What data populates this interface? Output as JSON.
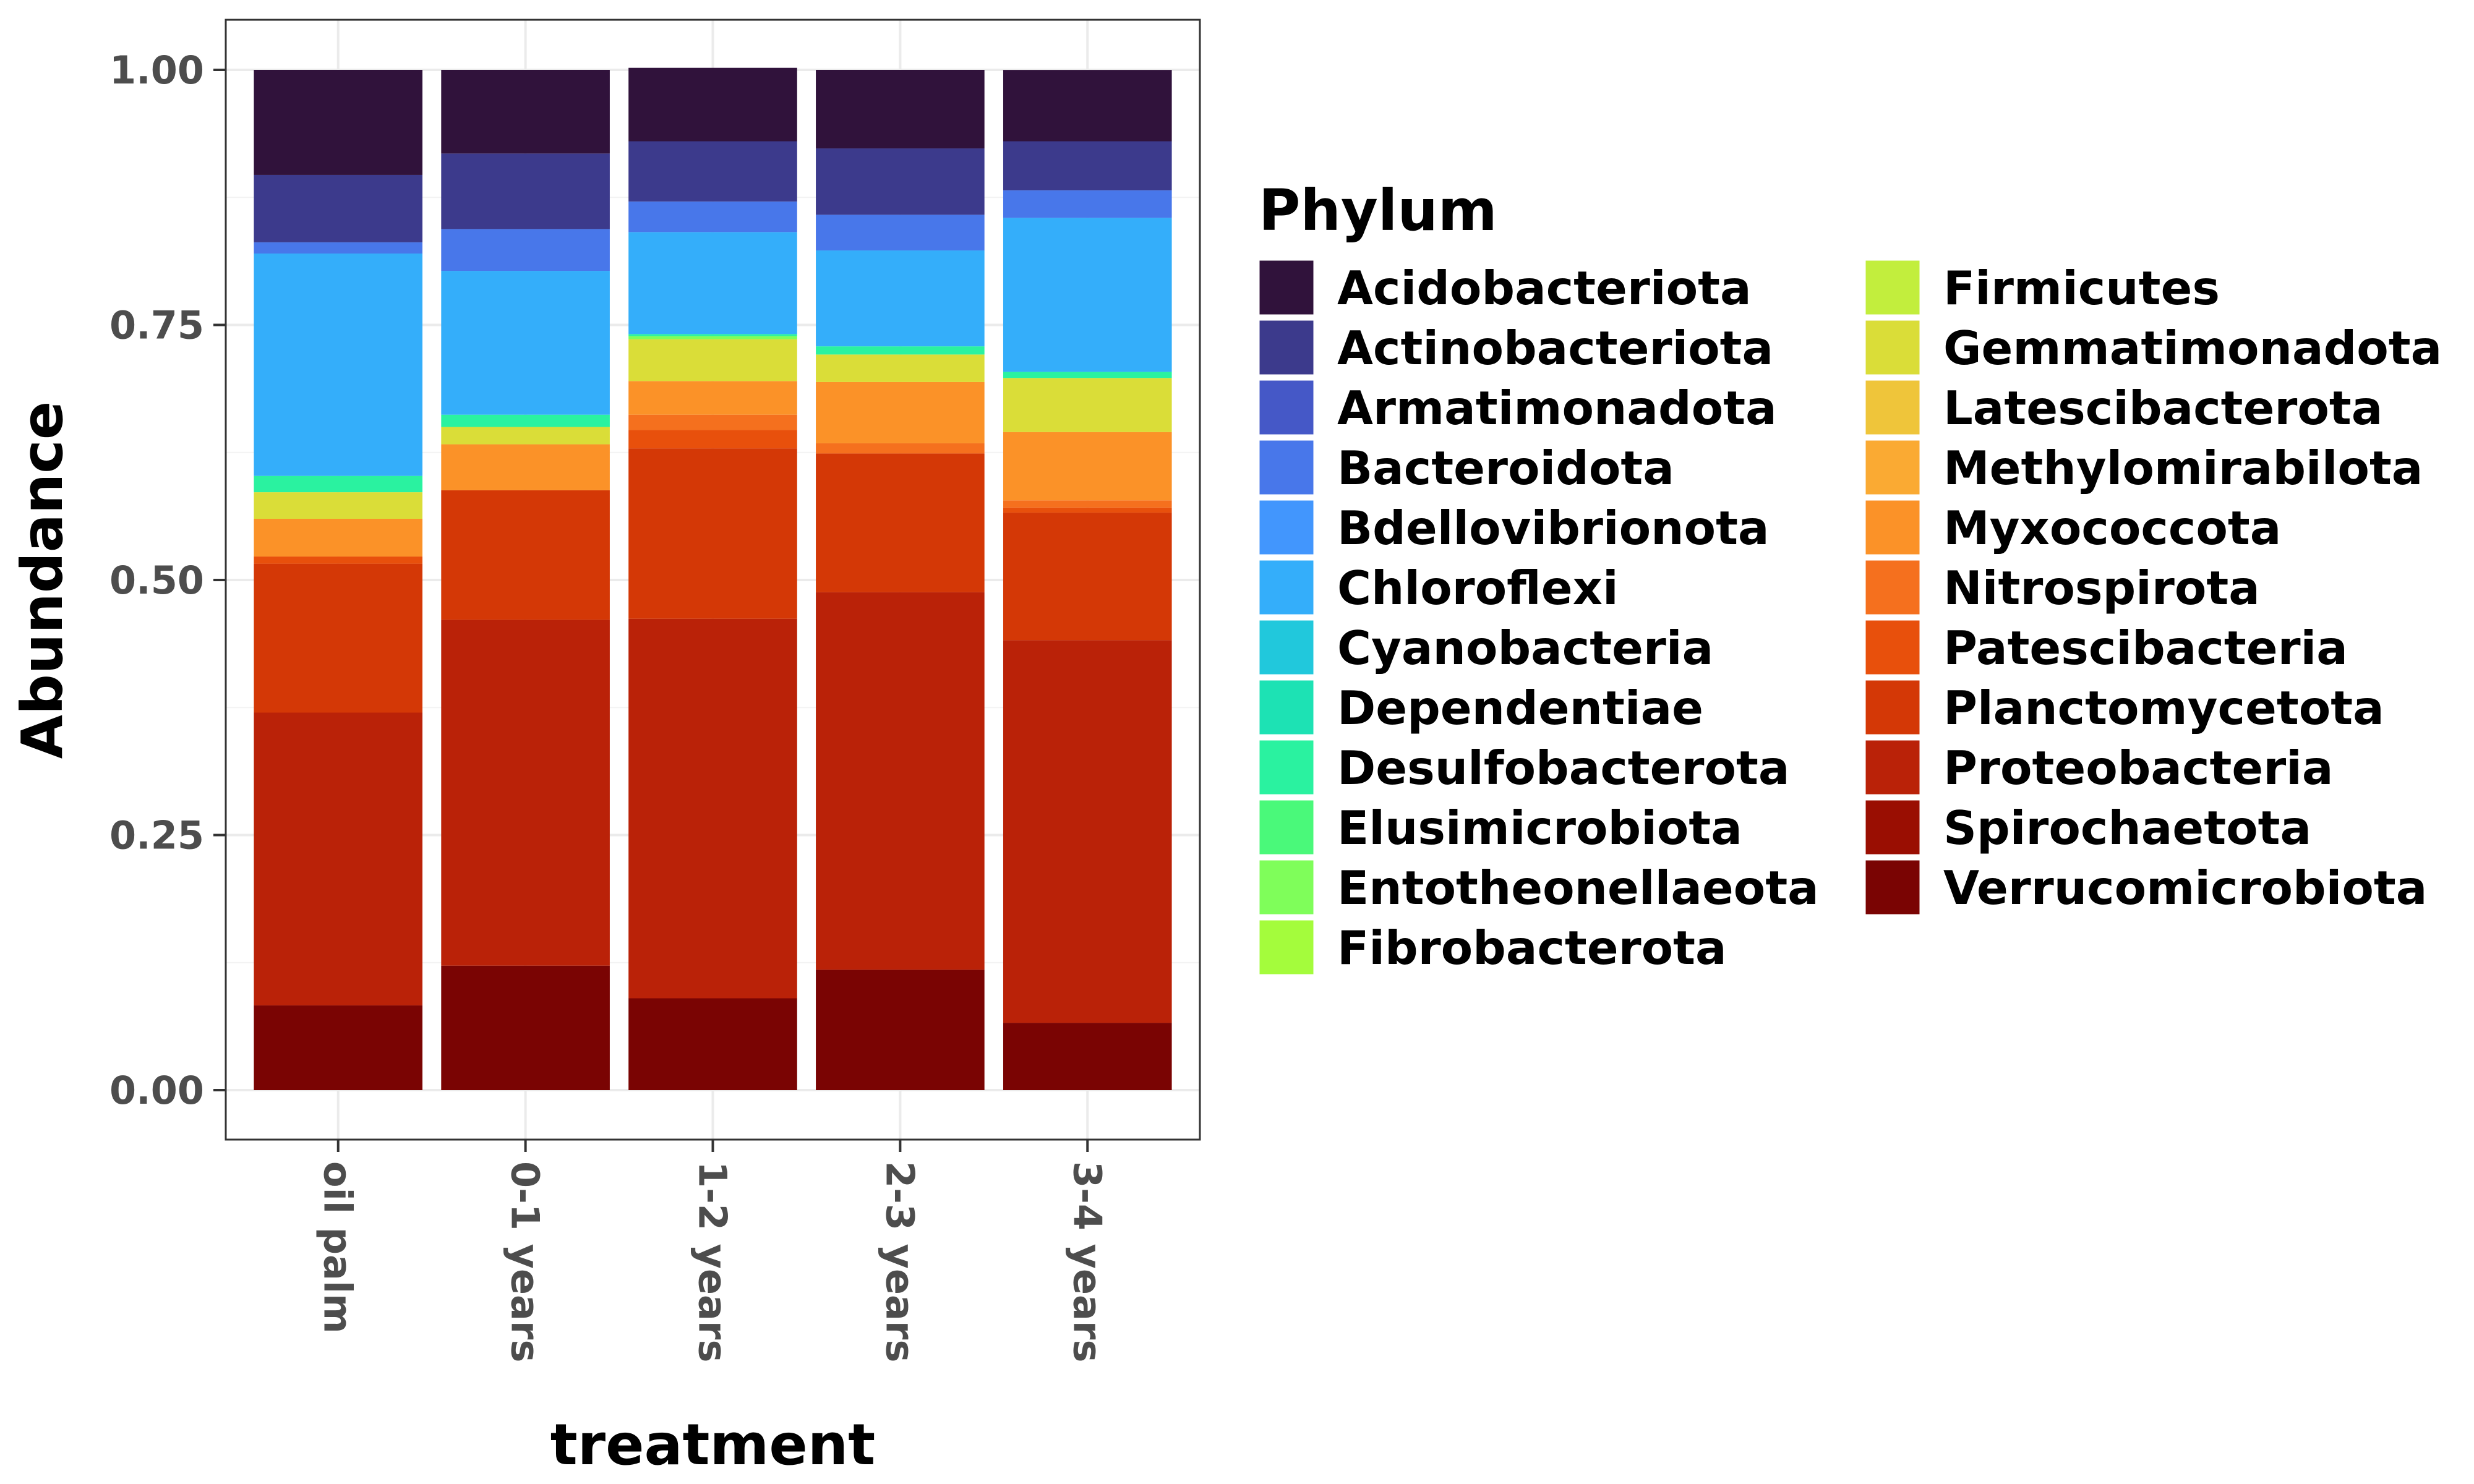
{
  "chart_data": {
    "type": "bar",
    "stacked": true,
    "xlabel": "treatment",
    "ylabel": "Abundance",
    "ylim": [
      0,
      1
    ],
    "yticks": [
      "0.00",
      "0.25",
      "0.50",
      "0.75",
      "1.00"
    ],
    "yticks_values": [
      0,
      0.25,
      0.5,
      0.75,
      1.0
    ],
    "grid": true,
    "legend": {
      "title": "Phylum",
      "placement": "right",
      "columns": 2
    },
    "categories": [
      "oil palm",
      "0-1 years",
      "1-2 years",
      "2-3 years",
      "3-4 years"
    ],
    "series": [
      {
        "name": "Verrucomicrobiota",
        "color": "#7a0403",
        "values": [
          0.083,
          0.122,
          0.09,
          0.118,
          0.066
        ]
      },
      {
        "name": "Spirochaetota",
        "color": "#9a0e02",
        "values": [
          0.0,
          0.0,
          0.0,
          0.0,
          0.0
        ]
      },
      {
        "name": "Proteobacteria",
        "color": "#ba2208",
        "values": [
          0.287,
          0.339,
          0.372,
          0.37,
          0.375
        ]
      },
      {
        "name": "Planctomycetota",
        "color": "#d43806",
        "values": [
          0.146,
          0.127,
          0.167,
          0.136,
          0.125
        ]
      },
      {
        "name": "Patescibacteria",
        "color": "#e8500c",
        "values": [
          0.007,
          0.0,
          0.018,
          0.0,
          0.005
        ]
      },
      {
        "name": "Nitrospirota",
        "color": "#f5701e",
        "values": [
          0.0,
          0.0,
          0.015,
          0.01,
          0.007
        ]
      },
      {
        "name": "Myxococcota",
        "color": "#fb9228",
        "values": [
          0.037,
          0.045,
          0.033,
          0.06,
          0.067
        ]
      },
      {
        "name": "Methylomirabilota",
        "color": "#faaa33",
        "values": [
          0.0,
          0.0,
          0.0,
          0.0,
          0.0
        ]
      },
      {
        "name": "Latescibacterota",
        "color": "#efc53a",
        "values": [
          0.0,
          0.0,
          0.0,
          0.0,
          0.0
        ]
      },
      {
        "name": "Gemmatimonadota",
        "color": "#dadd38",
        "values": [
          0.026,
          0.017,
          0.041,
          0.027,
          0.053
        ]
      },
      {
        "name": "Firmicutes",
        "color": "#c2ee3d",
        "values": [
          0.0,
          0.0,
          0.0,
          0.0,
          0.0
        ]
      },
      {
        "name": "Fibrobacterota",
        "color": "#a4fc3c",
        "values": [
          0.0,
          0.0,
          0.0,
          0.0,
          0.0
        ]
      },
      {
        "name": "Entotheonellaeota",
        "color": "#7ffe5a",
        "values": [
          0.0,
          0.0,
          0.003,
          0.0,
          0.0
        ]
      },
      {
        "name": "Elusimicrobiota",
        "color": "#4af97a",
        "values": [
          0.0,
          0.0,
          0.0,
          0.0,
          0.0
        ]
      },
      {
        "name": "Desulfobacterota",
        "color": "#2af2a0",
        "values": [
          0.016,
          0.012,
          0.002,
          0.008,
          0.006
        ]
      },
      {
        "name": "Dependentiae",
        "color": "#1de2b4",
        "values": [
          0.0,
          0.0,
          0.0,
          0.0,
          0.0
        ]
      },
      {
        "name": "Cyanobacteria",
        "color": "#21c8dc",
        "values": [
          0.0,
          0.0,
          0.0,
          0.0,
          0.0
        ]
      },
      {
        "name": "Chloroflexi",
        "color": "#34aefa",
        "values": [
          0.218,
          0.141,
          0.1,
          0.094,
          0.151
        ]
      },
      {
        "name": "Bdellovibrionota",
        "color": "#4296fd",
        "values": [
          0.0,
          0.0,
          0.0,
          0.0,
          0.0
        ]
      },
      {
        "name": "Bacteroidota",
        "color": "#4877ea",
        "values": [
          0.011,
          0.041,
          0.03,
          0.035,
          0.027
        ]
      },
      {
        "name": "Armatimonadota",
        "color": "#4558c7",
        "values": [
          0.0,
          0.0,
          0.0,
          0.0,
          0.0
        ]
      },
      {
        "name": "Actinobacteriota",
        "color": "#3c3a8c",
        "values": [
          0.066,
          0.074,
          0.059,
          0.065,
          0.048
        ]
      },
      {
        "name": "Acidobacteriota",
        "color": "#30123b",
        "values": [
          0.103,
          0.082,
          0.072,
          0.077,
          0.069
        ]
      }
    ],
    "legend_order": [
      "Acidobacteriota",
      "Actinobacteriota",
      "Armatimonadota",
      "Bacteroidota",
      "Bdellovibrionota",
      "Chloroflexi",
      "Cyanobacteria",
      "Dependentiae",
      "Desulfobacterota",
      "Elusimicrobiota",
      "Entotheonellaeota",
      "Fibrobacterota",
      "Firmicutes",
      "Gemmatimonadota",
      "Latescibacterota",
      "Methylomirabilota",
      "Myxococcota",
      "Nitrospirota",
      "Patescibacteria",
      "Planctomycetota",
      "Proteobacteria",
      "Spirochaetota",
      "Verrucomicrobiota"
    ]
  }
}
